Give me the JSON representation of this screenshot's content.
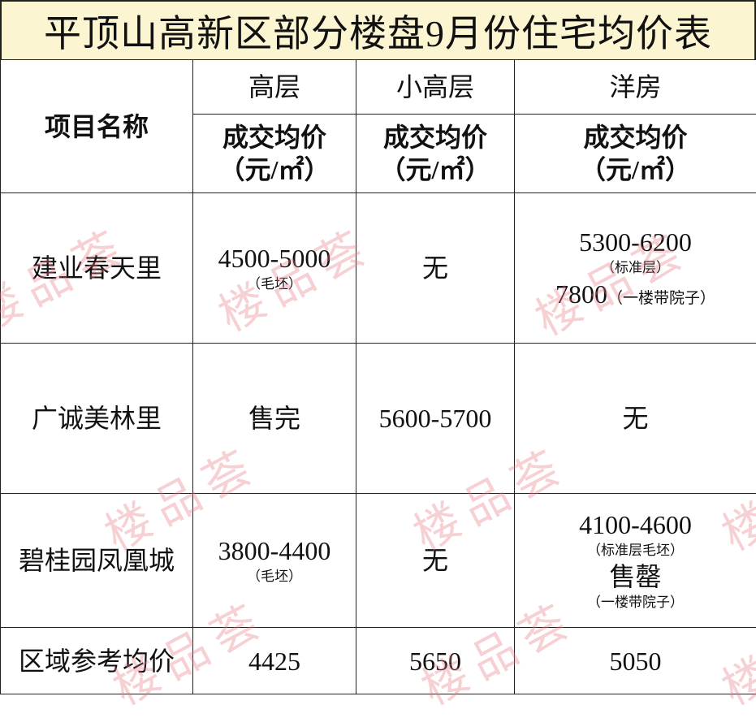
{
  "title": "平顶山高新区部分楼盘9月份住宅均价表",
  "header": {
    "name": "项目名称",
    "cols": [
      "高层",
      "小高层",
      "洋房"
    ],
    "price_label": "成交均价",
    "unit": "（元/㎡）"
  },
  "rows": [
    {
      "name": "建业春天里",
      "gaoceng": {
        "price": "4500-5000",
        "note": "（毛坯）"
      },
      "xiaogaoceng": {
        "price": "无"
      },
      "yangfang": {
        "price": "5300-6200",
        "note": "（标准层）",
        "price2": "7800",
        "note2": "（一楼带院子）"
      }
    },
    {
      "name": "广诚美林里",
      "gaoceng": {
        "price": "售完"
      },
      "xiaogaoceng": {
        "price": "5600-5700"
      },
      "yangfang": {
        "price": "无"
      }
    },
    {
      "name": "碧桂园凤凰城",
      "gaoceng": {
        "price": "3800-4400",
        "note": "（毛坯）"
      },
      "xiaogaoceng": {
        "price": "无"
      },
      "yangfang": {
        "price": "4100-4600",
        "note": "（标准层毛坯）",
        "price2": "售罄",
        "note2": "（一楼带院子）"
      }
    },
    {
      "name": "区域参考均价",
      "gaoceng": {
        "price": "4425"
      },
      "xiaogaoceng": {
        "price": "5650"
      },
      "yangfang": {
        "price": "5050"
      }
    }
  ],
  "watermark": "楼品荟",
  "colors": {
    "title_bg": "#fcf5d2",
    "watermark": "#e67882"
  }
}
